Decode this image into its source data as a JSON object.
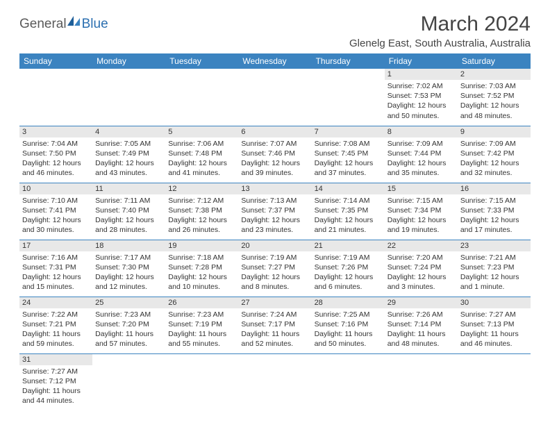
{
  "logo": {
    "part1": "General",
    "part2": "Blue"
  },
  "title": "March 2024",
  "location": "Glenelg East, South Australia, Australia",
  "colors": {
    "header_bg": "#3b83c0",
    "header_text": "#ffffff",
    "daynum_bg": "#e8e8e8",
    "text": "#333333",
    "rule": "#3b83c0"
  },
  "weekdays": [
    "Sunday",
    "Monday",
    "Tuesday",
    "Wednesday",
    "Thursday",
    "Friday",
    "Saturday"
  ],
  "leading_blanks": 5,
  "days": [
    {
      "n": "1",
      "sunrise": "7:02 AM",
      "sunset": "7:53 PM",
      "daylight": "12 hours and 50 minutes."
    },
    {
      "n": "2",
      "sunrise": "7:03 AM",
      "sunset": "7:52 PM",
      "daylight": "12 hours and 48 minutes."
    },
    {
      "n": "3",
      "sunrise": "7:04 AM",
      "sunset": "7:50 PM",
      "daylight": "12 hours and 46 minutes."
    },
    {
      "n": "4",
      "sunrise": "7:05 AM",
      "sunset": "7:49 PM",
      "daylight": "12 hours and 43 minutes."
    },
    {
      "n": "5",
      "sunrise": "7:06 AM",
      "sunset": "7:48 PM",
      "daylight": "12 hours and 41 minutes."
    },
    {
      "n": "6",
      "sunrise": "7:07 AM",
      "sunset": "7:46 PM",
      "daylight": "12 hours and 39 minutes."
    },
    {
      "n": "7",
      "sunrise": "7:08 AM",
      "sunset": "7:45 PM",
      "daylight": "12 hours and 37 minutes."
    },
    {
      "n": "8",
      "sunrise": "7:09 AM",
      "sunset": "7:44 PM",
      "daylight": "12 hours and 35 minutes."
    },
    {
      "n": "9",
      "sunrise": "7:09 AM",
      "sunset": "7:42 PM",
      "daylight": "12 hours and 32 minutes."
    },
    {
      "n": "10",
      "sunrise": "7:10 AM",
      "sunset": "7:41 PM",
      "daylight": "12 hours and 30 minutes."
    },
    {
      "n": "11",
      "sunrise": "7:11 AM",
      "sunset": "7:40 PM",
      "daylight": "12 hours and 28 minutes."
    },
    {
      "n": "12",
      "sunrise": "7:12 AM",
      "sunset": "7:38 PM",
      "daylight": "12 hours and 26 minutes."
    },
    {
      "n": "13",
      "sunrise": "7:13 AM",
      "sunset": "7:37 PM",
      "daylight": "12 hours and 23 minutes."
    },
    {
      "n": "14",
      "sunrise": "7:14 AM",
      "sunset": "7:35 PM",
      "daylight": "12 hours and 21 minutes."
    },
    {
      "n": "15",
      "sunrise": "7:15 AM",
      "sunset": "7:34 PM",
      "daylight": "12 hours and 19 minutes."
    },
    {
      "n": "16",
      "sunrise": "7:15 AM",
      "sunset": "7:33 PM",
      "daylight": "12 hours and 17 minutes."
    },
    {
      "n": "17",
      "sunrise": "7:16 AM",
      "sunset": "7:31 PM",
      "daylight": "12 hours and 15 minutes."
    },
    {
      "n": "18",
      "sunrise": "7:17 AM",
      "sunset": "7:30 PM",
      "daylight": "12 hours and 12 minutes."
    },
    {
      "n": "19",
      "sunrise": "7:18 AM",
      "sunset": "7:28 PM",
      "daylight": "12 hours and 10 minutes."
    },
    {
      "n": "20",
      "sunrise": "7:19 AM",
      "sunset": "7:27 PM",
      "daylight": "12 hours and 8 minutes."
    },
    {
      "n": "21",
      "sunrise": "7:19 AM",
      "sunset": "7:26 PM",
      "daylight": "12 hours and 6 minutes."
    },
    {
      "n": "22",
      "sunrise": "7:20 AM",
      "sunset": "7:24 PM",
      "daylight": "12 hours and 3 minutes."
    },
    {
      "n": "23",
      "sunrise": "7:21 AM",
      "sunset": "7:23 PM",
      "daylight": "12 hours and 1 minute."
    },
    {
      "n": "24",
      "sunrise": "7:22 AM",
      "sunset": "7:21 PM",
      "daylight": "11 hours and 59 minutes."
    },
    {
      "n": "25",
      "sunrise": "7:23 AM",
      "sunset": "7:20 PM",
      "daylight": "11 hours and 57 minutes."
    },
    {
      "n": "26",
      "sunrise": "7:23 AM",
      "sunset": "7:19 PM",
      "daylight": "11 hours and 55 minutes."
    },
    {
      "n": "27",
      "sunrise": "7:24 AM",
      "sunset": "7:17 PM",
      "daylight": "11 hours and 52 minutes."
    },
    {
      "n": "28",
      "sunrise": "7:25 AM",
      "sunset": "7:16 PM",
      "daylight": "11 hours and 50 minutes."
    },
    {
      "n": "29",
      "sunrise": "7:26 AM",
      "sunset": "7:14 PM",
      "daylight": "11 hours and 48 minutes."
    },
    {
      "n": "30",
      "sunrise": "7:27 AM",
      "sunset": "7:13 PM",
      "daylight": "11 hours and 46 minutes."
    },
    {
      "n": "31",
      "sunrise": "7:27 AM",
      "sunset": "7:12 PM",
      "daylight": "11 hours and 44 minutes."
    }
  ],
  "labels": {
    "sunrise": "Sunrise:",
    "sunset": "Sunset:",
    "daylight": "Daylight:"
  }
}
